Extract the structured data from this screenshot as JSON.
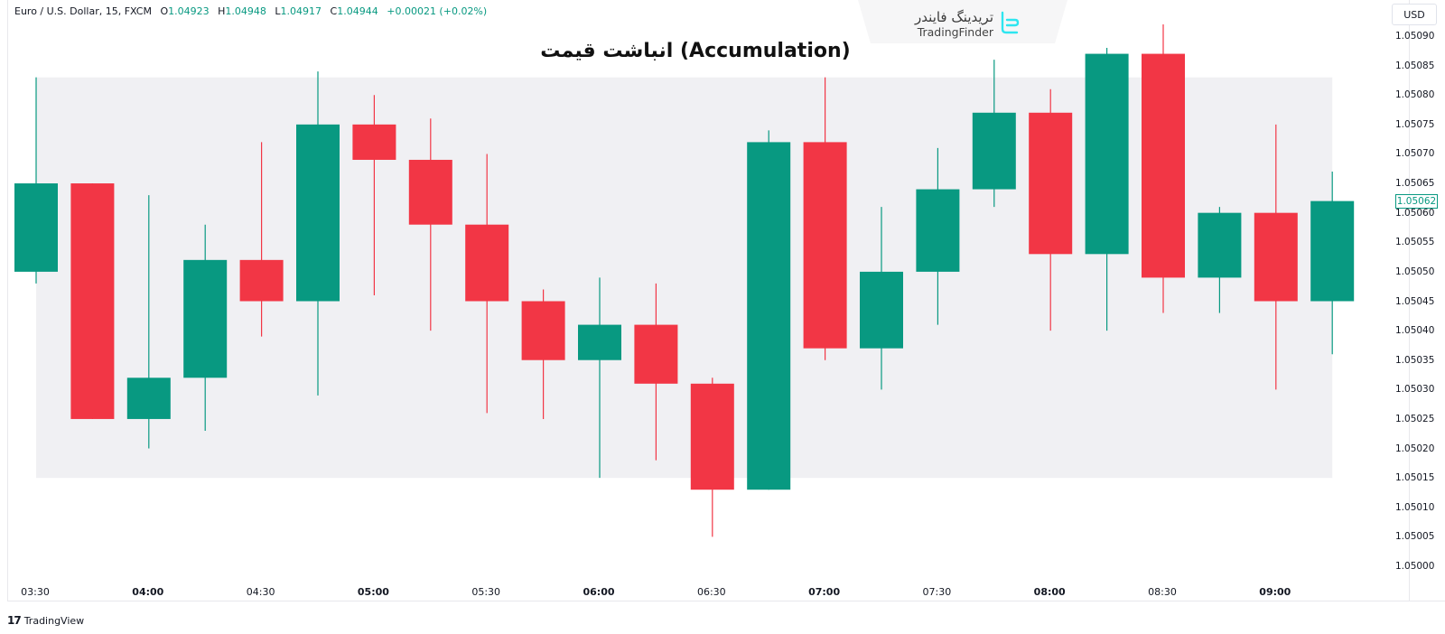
{
  "legend": {
    "symbol": "Euro / U.S. Dollar, 15, FXCM",
    "open_label": "O",
    "open": "1.04923",
    "high_label": "H",
    "high": "1.04948",
    "low_label": "L",
    "low": "1.04917",
    "close_label": "C",
    "close": "1.04944",
    "change": "+0.00021 (+0.02%)"
  },
  "brand": {
    "name_fa": "تریدینگ فایندر",
    "name_en": "TradingFinder"
  },
  "footer": {
    "logo_mark": "17",
    "label": "TradingView"
  },
  "price_axis": {
    "currency": "USD",
    "last_price": "1.05062",
    "ticks": [
      "1.05090",
      "1.05085",
      "1.05080",
      "1.05075",
      "1.05070",
      "1.05065",
      "1.05060",
      "1.05055",
      "1.05050",
      "1.05045",
      "1.05040",
      "1.05035",
      "1.05030",
      "1.05025",
      "1.05020",
      "1.05015",
      "1.05010",
      "1.05005",
      "1.05000"
    ]
  },
  "time_axis": {
    "ticks": [
      {
        "label": "03:30",
        "major": false
      },
      {
        "label": "04:00",
        "major": true
      },
      {
        "label": "04:30",
        "major": false
      },
      {
        "label": "05:00",
        "major": true
      },
      {
        "label": "05:30",
        "major": false
      },
      {
        "label": "06:00",
        "major": true
      },
      {
        "label": "06:30",
        "major": false
      },
      {
        "label": "07:00",
        "major": true
      },
      {
        "label": "07:30",
        "major": false
      },
      {
        "label": "08:00",
        "major": true
      },
      {
        "label": "08:30",
        "major": false
      },
      {
        "label": "09:00",
        "major": true
      }
    ]
  },
  "colors": {
    "up": "#089981",
    "down": "#f23645",
    "zone_fill": "#f0f0f3",
    "brand_cyan": "#2ee6f0"
  },
  "chart_data": {
    "type": "candlestick",
    "title": "انباشت قیمت (Accumulation)",
    "symbol": "EURUSD",
    "timeframe": "15",
    "xlabel": "",
    "ylabel": "USD",
    "ylim": [
      1.05,
      1.0509
    ],
    "grid": false,
    "x": [
      "03:30",
      "03:45",
      "04:00",
      "04:15",
      "04:30",
      "04:45",
      "05:00",
      "05:15",
      "05:30",
      "05:45",
      "06:00",
      "06:15",
      "06:30",
      "06:45",
      "07:00",
      "07:15",
      "07:30",
      "07:45",
      "08:00",
      "08:15",
      "08:30",
      "08:45",
      "09:00",
      "09:15"
    ],
    "candles": [
      {
        "o": 1.0505,
        "h": 1.05083,
        "l": 1.05048,
        "c": 1.05065
      },
      {
        "o": 1.05065,
        "h": 1.05065,
        "l": 1.05025,
        "c": 1.05025
      },
      {
        "o": 1.05025,
        "h": 1.05063,
        "l": 1.0502,
        "c": 1.05032
      },
      {
        "o": 1.05032,
        "h": 1.05058,
        "l": 1.05023,
        "c": 1.05052
      },
      {
        "o": 1.05052,
        "h": 1.05072,
        "l": 1.05039,
        "c": 1.05045
      },
      {
        "o": 1.05045,
        "h": 1.05084,
        "l": 1.05029,
        "c": 1.05075
      },
      {
        "o": 1.05075,
        "h": 1.0508,
        "l": 1.05046,
        "c": 1.05069
      },
      {
        "o": 1.05069,
        "h": 1.05076,
        "l": 1.0504,
        "c": 1.05058
      },
      {
        "o": 1.05058,
        "h": 1.0507,
        "l": 1.05026,
        "c": 1.05045
      },
      {
        "o": 1.05045,
        "h": 1.05047,
        "l": 1.05025,
        "c": 1.05035
      },
      {
        "o": 1.05035,
        "h": 1.05049,
        "l": 1.05015,
        "c": 1.05041
      },
      {
        "o": 1.05041,
        "h": 1.05048,
        "l": 1.05018,
        "c": 1.05031
      },
      {
        "o": 1.05031,
        "h": 1.05032,
        "l": 1.05005,
        "c": 1.05013
      },
      {
        "o": 1.05013,
        "h": 1.05074,
        "l": 1.05013,
        "c": 1.05072
      },
      {
        "o": 1.05072,
        "h": 1.05083,
        "l": 1.05035,
        "c": 1.05037
      },
      {
        "o": 1.05037,
        "h": 1.05061,
        "l": 1.0503,
        "c": 1.0505
      },
      {
        "o": 1.0505,
        "h": 1.05071,
        "l": 1.05041,
        "c": 1.05064
      },
      {
        "o": 1.05064,
        "h": 1.05086,
        "l": 1.05061,
        "c": 1.05077
      },
      {
        "o": 1.05077,
        "h": 1.05081,
        "l": 1.0504,
        "c": 1.05053
      },
      {
        "o": 1.05053,
        "h": 1.05088,
        "l": 1.0504,
        "c": 1.05087
      },
      {
        "o": 1.05087,
        "h": 1.05092,
        "l": 1.05043,
        "c": 1.05049
      },
      {
        "o": 1.05049,
        "h": 1.05061,
        "l": 1.05043,
        "c": 1.0506
      },
      {
        "o": 1.0506,
        "h": 1.05075,
        "l": 1.0503,
        "c": 1.05045
      },
      {
        "o": 1.05045,
        "h": 1.05067,
        "l": 1.05036,
        "c": 1.05062
      }
    ],
    "annotations": [
      {
        "type": "rectangle",
        "label": "Accumulation zone",
        "x_start": "03:30",
        "x_end": "09:15",
        "y_top": 1.05083,
        "y_bottom": 1.05015
      }
    ]
  }
}
